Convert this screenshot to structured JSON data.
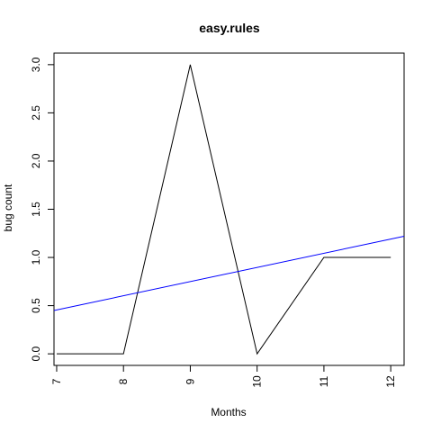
{
  "chart_data": {
    "type": "line",
    "title": "easy.rules",
    "xlabel": "Months",
    "ylabel": "bug count",
    "xlim": [
      6.96,
      12.2
    ],
    "ylim": [
      -0.12,
      3.12
    ],
    "x_ticks": [
      7,
      8,
      9,
      10,
      11,
      12
    ],
    "x_tick_labels": [
      "7",
      "8",
      "9",
      "10",
      "11",
      "12"
    ],
    "y_ticks": [
      0.0,
      0.5,
      1.0,
      1.5,
      2.0,
      2.5,
      3.0
    ],
    "y_tick_labels": [
      "0.0",
      "0.5",
      "1.0",
      "1.5",
      "2.0",
      "2.5",
      "3.0"
    ],
    "grid": false,
    "series": [
      {
        "x": [
          7,
          8,
          9,
          10,
          11,
          12
        ],
        "values": [
          0,
          0,
          3,
          0,
          1,
          1
        ],
        "color": "#000000"
      },
      {
        "kind": "trend",
        "x": [
          6.96,
          12.2
        ],
        "values": [
          0.45,
          1.22
        ],
        "color": "#0000ff"
      }
    ]
  }
}
